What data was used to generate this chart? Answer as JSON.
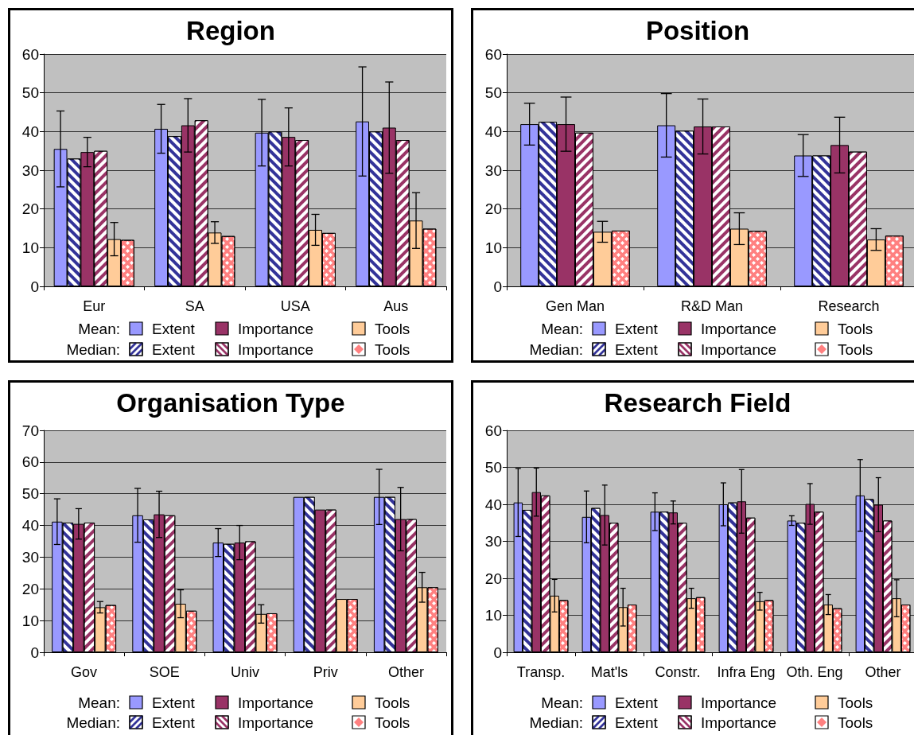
{
  "chart_data": [
    {
      "type": "bar",
      "title": "Region",
      "categories": [
        "Eur",
        "SA",
        "USA",
        "Aus"
      ],
      "ylim": [
        0,
        60
      ],
      "yticks": [
        0,
        10,
        20,
        30,
        40,
        50,
        60
      ],
      "grid": "y",
      "legend": "bottom",
      "annotations": [
        "Mean:",
        "Median:"
      ],
      "series": [
        {
          "name": "Extent",
          "color": "#9999ff",
          "values": [
            35.5,
            40.7,
            39.7,
            42.6
          ],
          "errors": [
            9.8,
            6.3,
            8.6,
            14.1
          ]
        },
        {
          "name": "Extent",
          "color": "#333399",
          "values": [
            33,
            38.8,
            40,
            40
          ]
        },
        {
          "name": "Importance",
          "color": "#993366",
          "values": [
            34.7,
            41.6,
            38.6,
            41
          ],
          "errors": [
            3.8,
            6.9,
            7.5,
            11.8
          ]
        },
        {
          "name": "Importance",
          "color": "#993366",
          "values": [
            35,
            42.9,
            37.8,
            37.8
          ]
        },
        {
          "name": "Tools",
          "color": "#ffcc99",
          "values": [
            12.2,
            13.9,
            14.6,
            17
          ],
          "errors": [
            4.3,
            2.8,
            4,
            7.2
          ]
        },
        {
          "name": "Tools",
          "color": "#ff8080",
          "values": [
            12,
            13,
            13.8,
            14.9
          ]
        }
      ]
    },
    {
      "type": "bar",
      "title": "Position",
      "categories": [
        "Gen Man",
        "R&D Man",
        "Research"
      ],
      "ylim": [
        0,
        60
      ],
      "yticks": [
        0,
        10,
        20,
        30,
        40,
        50,
        60
      ],
      "grid": "y",
      "legend": "bottom",
      "annotations": [
        "Mean:",
        "Median:"
      ],
      "series": [
        {
          "name": "Extent",
          "color": "#9999ff",
          "values": [
            41.9,
            41.6,
            33.8
          ],
          "errors": [
            5.4,
            8.2,
            5.4
          ]
        },
        {
          "name": "Extent",
          "color": "#333399",
          "values": [
            42.5,
            40.2,
            33.8
          ]
        },
        {
          "name": "Importance",
          "color": "#993366",
          "values": [
            41.9,
            41.3,
            36.5
          ],
          "errors": [
            7,
            7.1,
            7.2
          ]
        },
        {
          "name": "Importance",
          "color": "#993366",
          "values": [
            39.7,
            41.3,
            34.8
          ]
        },
        {
          "name": "Tools",
          "color": "#ffcc99",
          "values": [
            14.1,
            14.9,
            12.1
          ],
          "errors": [
            2.7,
            4.1,
            2.8
          ]
        },
        {
          "name": "Tools",
          "color": "#ff8080",
          "values": [
            14.4,
            14.3,
            13.1
          ]
        }
      ]
    },
    {
      "type": "bar",
      "title": "Organisation Type",
      "categories": [
        "Gov",
        "SOE",
        "Univ",
        "Priv",
        "Other"
      ],
      "ylim": [
        0,
        70
      ],
      "yticks": [
        0,
        10,
        20,
        30,
        40,
        50,
        60,
        70
      ],
      "grid": "y",
      "legend": "bottom",
      "annotations": [
        "Mean:",
        "Median:"
      ],
      "series": [
        {
          "name": "Extent",
          "color": "#9999ff",
          "values": [
            41.2,
            43.2,
            34.6,
            49,
            49
          ],
          "errors": [
            7.2,
            8.5,
            4.4,
            null,
            8.7
          ]
        },
        {
          "name": "Extent",
          "color": "#333399",
          "values": [
            40.9,
            41.9,
            34.2,
            49,
            49
          ]
        },
        {
          "name": "Importance",
          "color": "#993366",
          "values": [
            40.5,
            43.5,
            34.6,
            45,
            42
          ],
          "errors": [
            4.8,
            7.3,
            5.4,
            null,
            10
          ]
        },
        {
          "name": "Importance",
          "color": "#993366",
          "values": [
            40.9,
            43.2,
            35,
            45,
            42
          ]
        },
        {
          "name": "Tools",
          "color": "#ffcc99",
          "values": [
            14.2,
            15.3,
            12.1,
            16.8,
            20.5
          ],
          "errors": [
            1.8,
            4.4,
            2.9,
            null,
            4.7
          ]
        },
        {
          "name": "Tools",
          "color": "#ff8080",
          "values": [
            14.9,
            13.1,
            12.3,
            16.8,
            20.5
          ]
        }
      ]
    },
    {
      "type": "bar",
      "title": "Research Field",
      "categories": [
        "Transp.",
        "Mat'ls",
        "Constr.",
        "Infra Eng",
        "Oth. Eng",
        "Other"
      ],
      "ylim": [
        0,
        60
      ],
      "yticks": [
        0,
        10,
        20,
        30,
        40,
        50,
        60
      ],
      "grid": "y",
      "legend": "bottom",
      "annotations": [
        "Mean:",
        "Median:"
      ],
      "series": [
        {
          "name": "Extent",
          "color": "#9999ff",
          "values": [
            40.5,
            36.6,
            38,
            40,
            35.6,
            42.4
          ],
          "errors": [
            9.2,
            7,
            5.1,
            5.8,
            1.3,
            9.7
          ]
        },
        {
          "name": "Extent",
          "color": "#333399",
          "values": [
            38.5,
            39,
            38,
            40.5,
            35,
            41.4
          ]
        },
        {
          "name": "Importance",
          "color": "#993366",
          "values": [
            43.3,
            37.1,
            37.8,
            40.8,
            40.1,
            39.9
          ],
          "errors": [
            6.5,
            8.1,
            3.1,
            8.6,
            5.5,
            7.3
          ]
        },
        {
          "name": "Importance",
          "color": "#993366",
          "values": [
            42.4,
            35,
            35,
            36.4,
            38,
            35.6
          ]
        },
        {
          "name": "Tools",
          "color": "#ffcc99",
          "values": [
            15.3,
            12.2,
            14.6,
            13.8,
            12.9,
            14.6
          ],
          "errors": [
            4.4,
            5.1,
            2.7,
            2.4,
            2.7,
            5
          ]
        },
        {
          "name": "Tools",
          "color": "#ff8080",
          "values": [
            14.1,
            12.9,
            14.9,
            14.1,
            11.9,
            12.9
          ]
        }
      ]
    }
  ]
}
